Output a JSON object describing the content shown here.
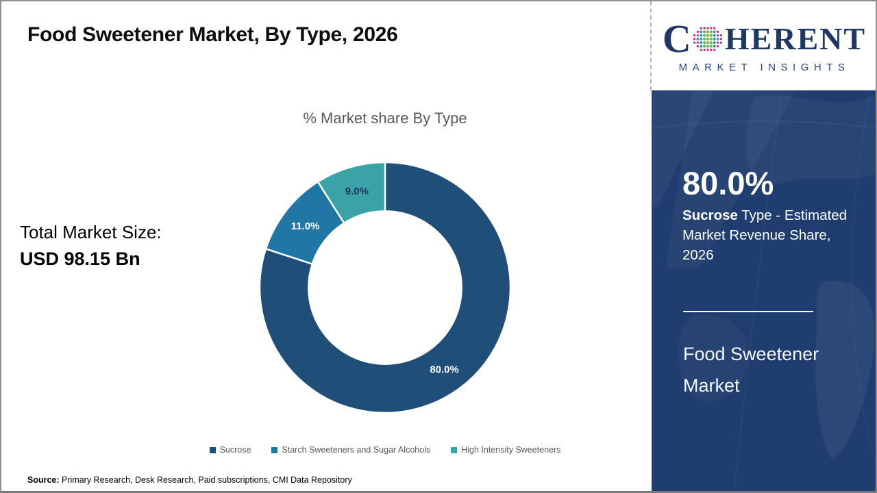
{
  "header": {
    "title": "Food Sweetener Market, By Type, 2026"
  },
  "logo": {
    "brand_c": "C",
    "brand_rest": "HERENT",
    "subtitle": "MARKET INSIGHTS",
    "globe_icon": "dotted-globe",
    "brand_color": "#1f3864"
  },
  "left_panel": {
    "market_size_label": "Total Market Size:",
    "market_size_value": "USD 98.15 Bn"
  },
  "chart_data": {
    "type": "pie",
    "subtype": "donut",
    "title": "% Market share By Type",
    "categories": [
      "Sucrose",
      "Starch Sweeteners and Sugar Alcohols",
      "High Intensity Sweeteners"
    ],
    "values": [
      80.0,
      11.0,
      9.0
    ],
    "slice_labels": [
      "80.0%",
      "11.0%",
      "9.0%"
    ],
    "colors": [
      "#1f4e79",
      "#2076a5",
      "#3ba2a8"
    ],
    "label_colors": [
      "#ffffff",
      "#ffffff",
      "#1f3864"
    ],
    "start_angle": "top",
    "direction": "clockwise",
    "inner_radius_ratio": 0.61,
    "legend_position": "bottom",
    "unit": "%"
  },
  "sidebar": {
    "background": "#1f3d6e",
    "stat_value": "80.0%",
    "stat_desc_bold": "Sucrose",
    "stat_desc_rest": " Type - Estimated Market Revenue Share, 2026",
    "footer_title": "Food Sweetener Market"
  },
  "footer": {
    "source_label": "Source:",
    "source_text": " Primary Research, Desk Research, Paid subscriptions, CMI Data Repository"
  }
}
